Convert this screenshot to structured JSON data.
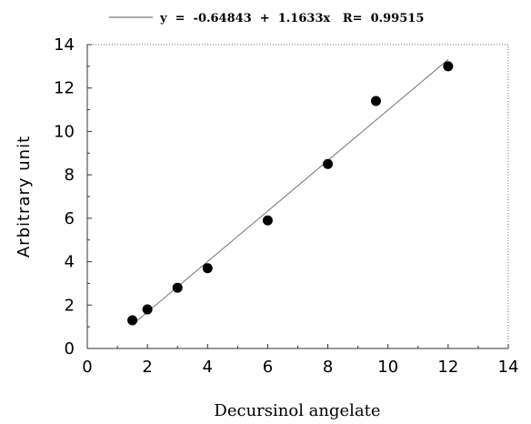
{
  "chart_data": {
    "type": "scatter",
    "legend_text": "y  =  -0.64843  +  1.1633x   R=  0.99515",
    "xlabel": "Decursinol angelate",
    "ylabel": "Arbitrary unit",
    "xlim": [
      0,
      14
    ],
    "ylim": [
      0,
      14
    ],
    "x_ticks": [
      "0",
      "2",
      "4",
      "6",
      "8",
      "10",
      "12",
      "14"
    ],
    "y_ticks": [
      "0",
      "2",
      "4",
      "6",
      "8",
      "10",
      "12",
      "14"
    ],
    "grid": false,
    "legend_position": "top",
    "fit": {
      "intercept": -0.64843,
      "slope": 1.1633
    },
    "series": [
      {
        "x": [
          1.5,
          2,
          3,
          4,
          6,
          8,
          9.6,
          12
        ],
        "y": [
          1.3,
          1.8,
          2.8,
          3.7,
          5.9,
          8.5,
          11.4,
          13.0
        ]
      }
    ]
  }
}
